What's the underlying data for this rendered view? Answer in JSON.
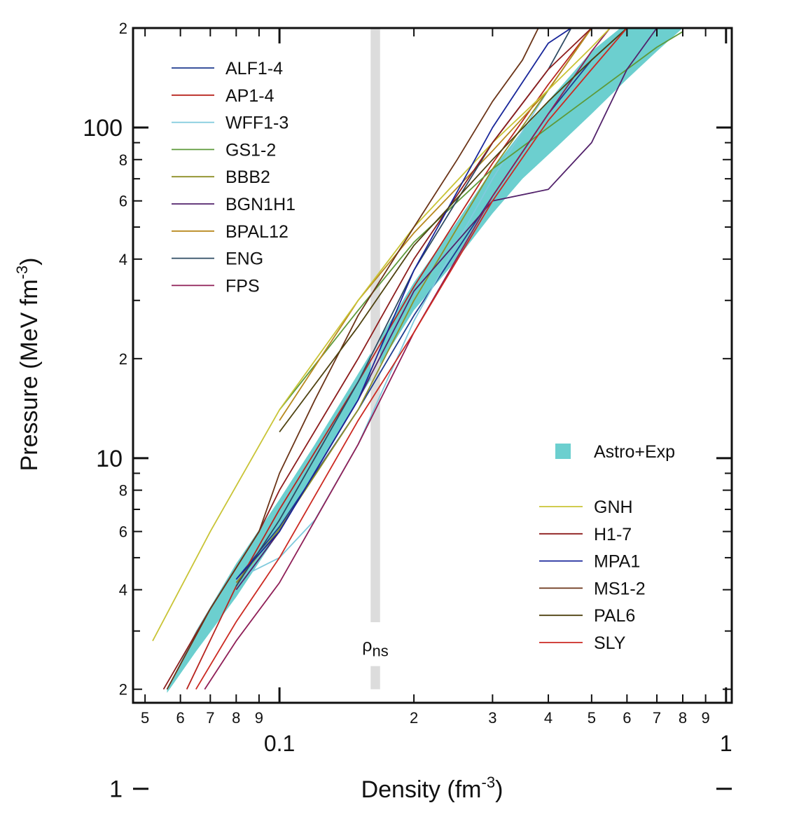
{
  "chart_data": {
    "type": "line",
    "xlabel": "Density (fm",
    "xlabel_exponent": "-3",
    "xlabel_tail": ")",
    "ylabel": "Pressure (MeV fm",
    "ylabel_exponent": "-3",
    "ylabel_tail": ")",
    "x_scale": "log",
    "y_scale": "log",
    "xlim": [
      0.047,
      1.03
    ],
    "ylim": [
      1.82,
      200
    ],
    "x_major_ticks": [
      {
        "value": 0.1,
        "label": "0.1"
      },
      {
        "value": 1,
        "label": "1"
      }
    ],
    "x_minor_ticks": [
      {
        "value": 0.05,
        "label": "5"
      },
      {
        "value": 0.06,
        "label": "6"
      },
      {
        "value": 0.07,
        "label": "7"
      },
      {
        "value": 0.08,
        "label": "8"
      },
      {
        "value": 0.09,
        "label": "9"
      },
      {
        "value": 0.2,
        "label": "2"
      },
      {
        "value": 0.3,
        "label": "3"
      },
      {
        "value": 0.4,
        "label": "4"
      },
      {
        "value": 0.5,
        "label": "5"
      },
      {
        "value": 0.6,
        "label": "6"
      },
      {
        "value": 0.7,
        "label": "7"
      },
      {
        "value": 0.8,
        "label": "8"
      },
      {
        "value": 0.9,
        "label": "9"
      }
    ],
    "y_major_ticks": [
      {
        "value": 1,
        "label": "1"
      },
      {
        "value": 10,
        "label": "10"
      },
      {
        "value": 100,
        "label": "100"
      }
    ],
    "y_minor_ticks": [
      {
        "value": 2,
        "label": "2"
      },
      {
        "value": 4,
        "label": "4"
      },
      {
        "value": 6,
        "label": "6"
      },
      {
        "value": 8,
        "label": "8"
      },
      {
        "value": 20,
        "label": "2"
      },
      {
        "value": 40,
        "label": "4"
      },
      {
        "value": 60,
        "label": "6"
      },
      {
        "value": 80,
        "label": "8"
      },
      {
        "value": 200,
        "label": "2"
      }
    ],
    "y_unlabeled_ticks": [
      3,
      5,
      7,
      9,
      30,
      50,
      70,
      90
    ],
    "saturation_band": {
      "label": "ρ",
      "label_sub": "ns",
      "x_range": [
        0.16,
        0.168
      ],
      "y_range": [
        2,
        200
      ],
      "label_y": 2.9,
      "color": "#dcdcdc"
    },
    "astro_exp_region": {
      "name": "Astro+Exp",
      "color": "#6ccfcf",
      "upper": [
        [
          0.056,
          2.0
        ],
        [
          0.07,
          3.5
        ],
        [
          0.09,
          6.0
        ],
        [
          0.1,
          8.0
        ],
        [
          0.12,
          12
        ],
        [
          0.15,
          19
        ],
        [
          0.2,
          33
        ],
        [
          0.25,
          50
        ],
        [
          0.3,
          68
        ],
        [
          0.38,
          95
        ],
        [
          0.45,
          125
        ],
        [
          0.5,
          150
        ],
        [
          0.56,
          195
        ],
        [
          0.8,
          200
        ]
      ],
      "lower": [
        [
          0.8,
          200
        ],
        [
          0.7,
          120
        ],
        [
          0.6,
          85
        ],
        [
          0.5,
          55
        ],
        [
          0.42,
          30
        ],
        [
          0.35,
          17
        ],
        [
          0.3,
          11
        ],
        [
          0.25,
          7.5
        ],
        [
          0.2,
          4.5
        ],
        [
          0.15,
          2.5
        ],
        [
          0.12,
          1.6
        ],
        [
          0.1,
          1.15
        ],
        [
          0.08,
          0.9
        ],
        [
          0.065,
          0.6
        ],
        [
          0.055,
          0.5
        ]
      ],
      "band_lower": [
        [
          0.056,
          1.95
        ],
        [
          0.065,
          2.6
        ],
        [
          0.08,
          3.8
        ],
        [
          0.1,
          6.0
        ],
        [
          0.12,
          9.0
        ],
        [
          0.15,
          15
        ],
        [
          0.2,
          28
        ],
        [
          0.25,
          40
        ],
        [
          0.3,
          55
        ],
        [
          0.35,
          70
        ],
        [
          0.42,
          88
        ],
        [
          0.5,
          110
        ],
        [
          0.6,
          140
        ],
        [
          0.7,
          170
        ],
        [
          0.8,
          200
        ]
      ],
      "band_upper": [
        [
          0.056,
          2.0
        ],
        [
          0.065,
          3.0
        ],
        [
          0.08,
          4.8
        ],
        [
          0.1,
          7.5
        ],
        [
          0.12,
          11
        ],
        [
          0.15,
          18
        ],
        [
          0.2,
          34
        ],
        [
          0.25,
          52
        ],
        [
          0.3,
          75
        ],
        [
          0.35,
          98
        ],
        [
          0.42,
          130
        ],
        [
          0.5,
          170
        ],
        [
          0.58,
          200
        ],
        [
          0.8,
          200
        ]
      ]
    },
    "series": [
      {
        "name": "ALF1-4",
        "color": "#1f3c8f",
        "points": [
          [
            0.08,
            4.3
          ],
          [
            0.1,
            6.2
          ],
          [
            0.15,
            14
          ],
          [
            0.2,
            27
          ],
          [
            0.3,
            62
          ],
          [
            0.4,
            110
          ],
          [
            0.5,
            160
          ],
          [
            0.6,
            200
          ]
        ]
      },
      {
        "name": "AP1-4",
        "color": "#b8251f",
        "points": [
          [
            0.062,
            2.0
          ],
          [
            0.08,
            4.1
          ],
          [
            0.1,
            7.0
          ],
          [
            0.15,
            17
          ],
          [
            0.2,
            33
          ],
          [
            0.3,
            78
          ],
          [
            0.4,
            135
          ],
          [
            0.5,
            200
          ]
        ]
      },
      {
        "name": "WFF1-3",
        "color": "#7fcadd",
        "points": [
          [
            0.08,
            4.3
          ],
          [
            0.1,
            5.0
          ],
          [
            0.12,
            6.5
          ],
          [
            0.15,
            11
          ],
          [
            0.2,
            26
          ],
          [
            0.3,
            70
          ],
          [
            0.4,
            130
          ],
          [
            0.5,
            200
          ]
        ]
      },
      {
        "name": "GS1-2",
        "color": "#5e9a3a",
        "points": [
          [
            0.1,
            14
          ],
          [
            0.15,
            28
          ],
          [
            0.2,
            45
          ],
          [
            0.3,
            75
          ],
          [
            0.4,
            100
          ],
          [
            0.5,
            125
          ],
          [
            0.6,
            150
          ],
          [
            0.7,
            175
          ],
          [
            0.8,
            195
          ]
        ]
      },
      {
        "name": "BBB2",
        "color": "#8f9028",
        "points": [
          [
            0.08,
            4.2
          ],
          [
            0.1,
            6.1
          ],
          [
            0.15,
            14
          ],
          [
            0.2,
            30
          ],
          [
            0.3,
            75
          ],
          [
            0.4,
            130
          ],
          [
            0.5,
            200
          ]
        ]
      },
      {
        "name": "BGN1H1",
        "color": "#52226b",
        "points": [
          [
            0.08,
            4.0
          ],
          [
            0.1,
            6.0
          ],
          [
            0.15,
            15
          ],
          [
            0.2,
            32
          ],
          [
            0.3,
            60
          ],
          [
            0.4,
            65
          ],
          [
            0.5,
            90
          ],
          [
            0.6,
            150
          ],
          [
            0.7,
            200
          ]
        ]
      },
      {
        "name": "BPAL12",
        "color": "#b8891e",
        "points": [
          [
            0.1,
            13
          ],
          [
            0.15,
            30
          ],
          [
            0.2,
            48
          ],
          [
            0.3,
            85
          ],
          [
            0.4,
            130
          ],
          [
            0.5,
            200
          ]
        ]
      },
      {
        "name": "ENG",
        "color": "#2e4b63",
        "points": [
          [
            0.08,
            4.1
          ],
          [
            0.1,
            6.5
          ],
          [
            0.15,
            17
          ],
          [
            0.2,
            37
          ],
          [
            0.3,
            90
          ],
          [
            0.4,
            150
          ],
          [
            0.45,
            200
          ]
        ]
      },
      {
        "name": "FPS",
        "color": "#8f1f57",
        "points": [
          [
            0.068,
            2.0
          ],
          [
            0.08,
            2.8
          ],
          [
            0.1,
            4.2
          ],
          [
            0.15,
            11
          ],
          [
            0.2,
            24
          ],
          [
            0.3,
            62
          ],
          [
            0.4,
            110
          ],
          [
            0.5,
            170
          ],
          [
            0.55,
            200
          ]
        ]
      },
      {
        "name": "GNH",
        "color": "#c9c436",
        "points": [
          [
            0.052,
            2.8
          ],
          [
            0.07,
            6.0
          ],
          [
            0.1,
            14
          ],
          [
            0.15,
            30
          ],
          [
            0.2,
            50
          ],
          [
            0.3,
            90
          ],
          [
            0.4,
            130
          ],
          [
            0.5,
            175
          ],
          [
            0.55,
            200
          ]
        ]
      },
      {
        "name": "H1-7",
        "color": "#8d1d1d",
        "points": [
          [
            0.055,
            2.0
          ],
          [
            0.07,
            3.5
          ],
          [
            0.09,
            6.0
          ],
          [
            0.1,
            8.0
          ],
          [
            0.15,
            20
          ],
          [
            0.2,
            40
          ],
          [
            0.3,
            90
          ],
          [
            0.4,
            150
          ],
          [
            0.5,
            200
          ]
        ]
      },
      {
        "name": "MPA1",
        "color": "#18269a",
        "points": [
          [
            0.08,
            4.3
          ],
          [
            0.1,
            6.0
          ],
          [
            0.15,
            15
          ],
          [
            0.2,
            37
          ],
          [
            0.3,
            100
          ],
          [
            0.4,
            180
          ],
          [
            0.45,
            200
          ]
        ]
      },
      {
        "name": "MS1-2",
        "color": "#6b3418",
        "points": [
          [
            0.056,
            2.0
          ],
          [
            0.07,
            3.5
          ],
          [
            0.09,
            6.0
          ],
          [
            0.1,
            9.0
          ],
          [
            0.12,
            15
          ],
          [
            0.15,
            27
          ],
          [
            0.2,
            50
          ],
          [
            0.25,
            80
          ],
          [
            0.3,
            120
          ],
          [
            0.35,
            160
          ],
          [
            0.38,
            200
          ]
        ]
      },
      {
        "name": "PAL6",
        "color": "#4f4210",
        "points": [
          [
            0.1,
            12
          ],
          [
            0.15,
            25
          ],
          [
            0.2,
            44
          ],
          [
            0.3,
            80
          ],
          [
            0.4,
            120
          ],
          [
            0.5,
            160
          ],
          [
            0.6,
            200
          ]
        ]
      },
      {
        "name": "SLY",
        "color": "#cc2a22",
        "points": [
          [
            0.065,
            2.0
          ],
          [
            0.08,
            3.2
          ],
          [
            0.1,
            5.0
          ],
          [
            0.15,
            13
          ],
          [
            0.2,
            24
          ],
          [
            0.3,
            60
          ],
          [
            0.4,
            105
          ],
          [
            0.5,
            150
          ],
          [
            0.6,
            200
          ]
        ]
      }
    ],
    "legend_left": [
      "ALF1-4",
      "AP1-4",
      "WFF1-3",
      "GS1-2",
      "BBB2",
      "BGN1H1",
      "BPAL12",
      "ENG",
      "FPS"
    ],
    "legend_right": [
      "GNH",
      "H1-7",
      "MPA1",
      "MS1-2",
      "PAL6",
      "SLY"
    ],
    "legend_region_label": "Astro+Exp",
    "grid": false
  }
}
